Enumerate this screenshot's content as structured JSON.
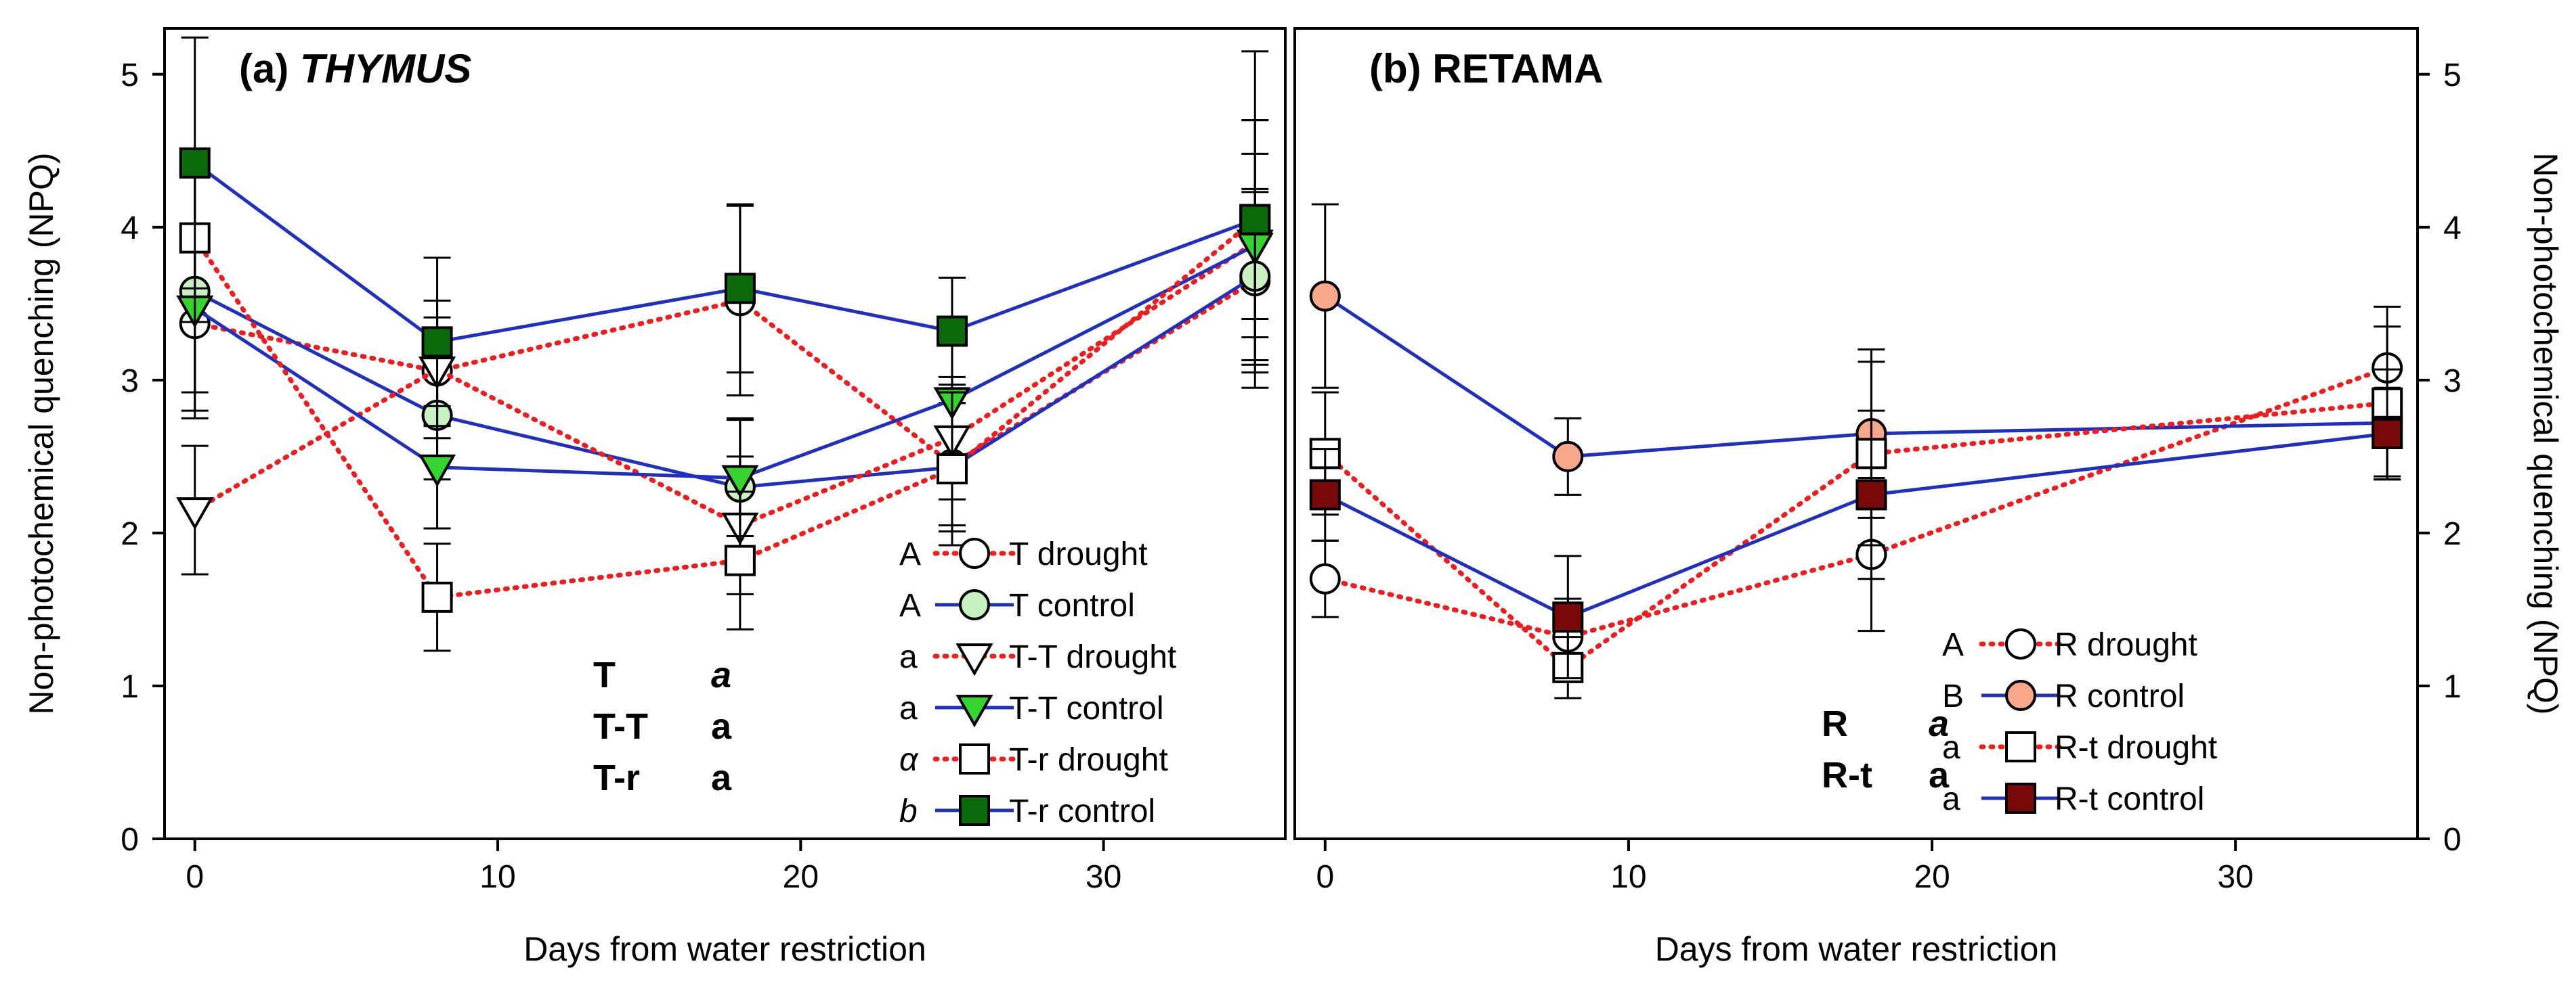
{
  "chart_data": [
    {
      "type": "line",
      "panel_label": "(a)",
      "title": "THYMUS",
      "xlabel": "Days from water restriction",
      "ylabel": "Non-photochemical quenching (NPQ)",
      "xlim": [
        -1,
        36
      ],
      "ylim": [
        0,
        5.3
      ],
      "xticks": [
        0,
        10,
        20,
        30
      ],
      "yticks": [
        0,
        1,
        2,
        3,
        4,
        5
      ],
      "x": [
        0,
        8,
        18,
        25,
        35
      ],
      "series": [
        {
          "name": "T drought",
          "letter": "A",
          "values": [
            3.37,
            3.06,
            3.52,
            2.45,
            3.65
          ],
          "errors": [
            0.62,
            0.35,
            0.62,
            0.4,
            0.6
          ],
          "marker": "circle",
          "fill": "#ffffff",
          "line": "dotted",
          "line_color": "#ee1c1c"
        },
        {
          "name": "T control",
          "letter": "A",
          "values": [
            3.58,
            2.77,
            2.3,
            2.43,
            3.68
          ],
          "errors": [
            0.78,
            0.42,
            0.45,
            0.42,
            0.55
          ],
          "marker": "circle",
          "fill": "#c8f0c0",
          "line": "solid",
          "line_color": "#1f2fbf"
        },
        {
          "name": "T-T drought",
          "letter": "a",
          "values": [
            2.15,
            3.07,
            2.05,
            2.62,
            3.9
          ],
          "errors": [
            0.42,
            0.45,
            0.45,
            0.4,
            0.8
          ],
          "marker": "triangle-down",
          "fill": "#ffffff",
          "line": "dotted",
          "line_color": "#ee1c1c"
        },
        {
          "name": "T-T control",
          "letter": "a",
          "values": [
            3.47,
            2.43,
            2.36,
            2.87,
            3.88
          ],
          "errors": [
            0.55,
            0.4,
            0.38,
            0.45,
            0.6
          ],
          "marker": "triangle-down",
          "fill": "#35d42e",
          "line": "solid",
          "line_color": "#1f2fbf"
        },
        {
          "name": "T-r drought",
          "letter": "α",
          "letter_italic": true,
          "values": [
            3.93,
            1.58,
            1.82,
            2.42,
            4.05
          ],
          "errors": [
            0.55,
            0.35,
            0.45,
            0.5,
            0.65
          ],
          "marker": "square",
          "fill": "#ffffff",
          "line": "dotted",
          "line_color": "#ee1c1c"
        },
        {
          "name": "T-r control",
          "letter": "b",
          "letter_italic": true,
          "values": [
            4.42,
            3.25,
            3.6,
            3.32,
            4.05
          ],
          "errors": [
            0.82,
            0.55,
            0.55,
            0.35,
            1.1
          ],
          "marker": "square",
          "fill": "#0b6b0b",
          "line": "solid",
          "line_color": "#1f2fbf"
        }
      ],
      "annotations": [
        {
          "name": "T",
          "value": "a",
          "italic": true
        },
        {
          "name": "T-T",
          "value": "a",
          "italic": false
        },
        {
          "name": "T-r",
          "value": "a",
          "italic": false
        }
      ],
      "legend_position": "bottom-right"
    },
    {
      "type": "line",
      "panel_label": "(b)",
      "title": "RETAMA",
      "xlabel": "Days from water restriction",
      "ylabel": "Non-photochemical quenching (NPQ)",
      "xlim": [
        -1,
        36
      ],
      "ylim": [
        0,
        5.3
      ],
      "xticks": [
        0,
        10,
        20,
        30
      ],
      "yticks": [
        0,
        1,
        2,
        3,
        4,
        5
      ],
      "x": [
        0,
        8,
        18,
        35
      ],
      "series": [
        {
          "name": "R drought",
          "letter": "A",
          "values": [
            1.7,
            1.32,
            1.86,
            3.08
          ],
          "errors": [
            0.25,
            0.25,
            0.5,
            0.4
          ],
          "marker": "circle",
          "fill": "#ffffff",
          "line": "dotted",
          "line_color": "#ee1c1c"
        },
        {
          "name": "R control",
          "letter": "B",
          "values": [
            3.55,
            2.5,
            2.65,
            2.72
          ],
          "errors": [
            0.6,
            0.25,
            0.55,
            0.35
          ],
          "marker": "circle",
          "fill": "#f8a88a",
          "line": "solid",
          "line_color": "#1f2fbf"
        },
        {
          "name": "R-t drought",
          "letter": "a",
          "values": [
            2.52,
            1.12,
            2.52,
            2.85
          ],
          "errors": [
            0.4,
            0.2,
            0.6,
            0.5
          ],
          "marker": "square",
          "fill": "#ffffff",
          "line": "dotted",
          "line_color": "#ee1c1c"
        },
        {
          "name": "R-t control",
          "letter": "a",
          "values": [
            2.25,
            1.45,
            2.25,
            2.65
          ],
          "errors": [
            0.3,
            0.4,
            0.55,
            0.3
          ],
          "marker": "square",
          "fill": "#7a0a0a",
          "line": "solid",
          "line_color": "#1f2fbf"
        }
      ],
      "annotations": [
        {
          "name": "R",
          "value": "a",
          "italic": true
        },
        {
          "name": "R-t",
          "value": "a",
          "italic": false
        }
      ],
      "legend_position": "bottom-right"
    }
  ]
}
